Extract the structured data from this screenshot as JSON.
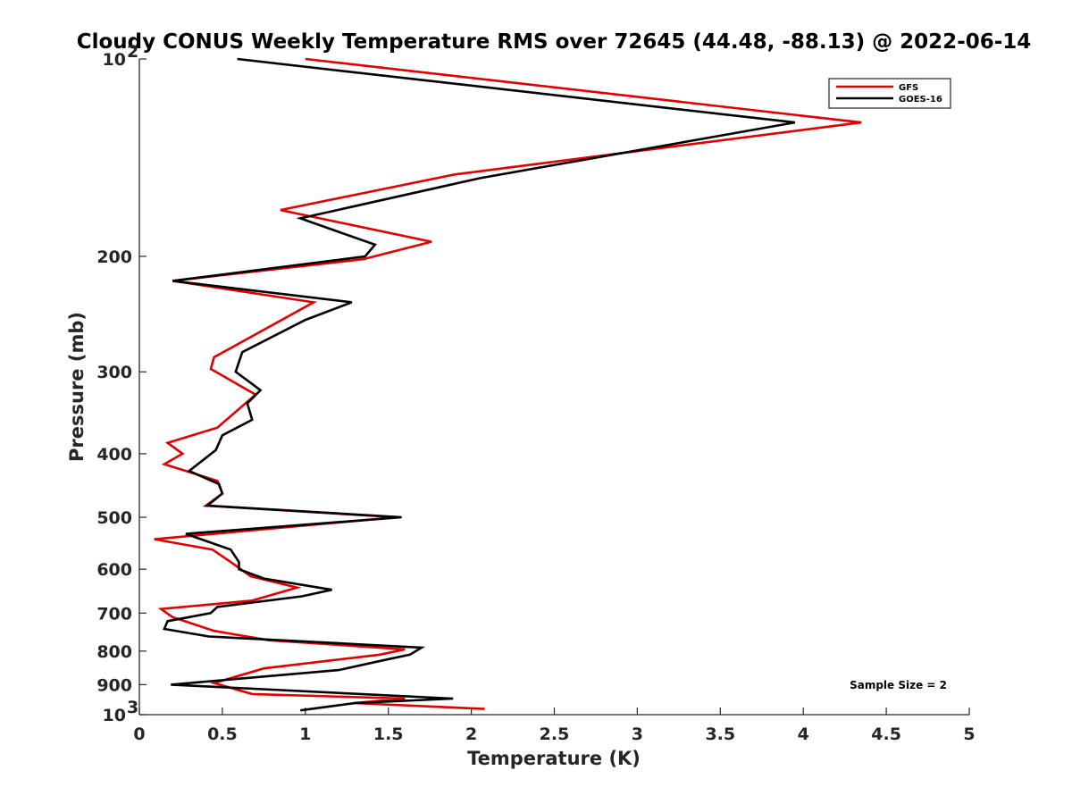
{
  "chart_data": {
    "type": "line",
    "title": "Cloudy CONUS Weekly Temperature RMS over 72645 (44.48, -88.13) @ 2022-06-14",
    "xlabel": "Temperature (K)",
    "ylabel": "Pressure (mb)",
    "xlim": [
      0,
      5
    ],
    "ylim": [
      100,
      1000
    ],
    "y_scale": "log",
    "y_reversed": true,
    "x_ticks": [
      0,
      0.5,
      1,
      1.5,
      2,
      2.5,
      3,
      3.5,
      4,
      4.5,
      5
    ],
    "x_tick_labels": [
      "0",
      "0.5",
      "1",
      "1.5",
      "2",
      "2.5",
      "3",
      "3.5",
      "4",
      "4.5",
      "5"
    ],
    "y_ticks": [
      {
        "value": 100,
        "label": "10",
        "exp": "2"
      },
      {
        "value": 200,
        "label": "200",
        "exp": ""
      },
      {
        "value": 300,
        "label": "300",
        "exp": ""
      },
      {
        "value": 400,
        "label": "400",
        "exp": ""
      },
      {
        "value": 500,
        "label": "500",
        "exp": ""
      },
      {
        "value": 600,
        "label": "600",
        "exp": ""
      },
      {
        "value": 700,
        "label": "700",
        "exp": ""
      },
      {
        "value": 800,
        "label": "800",
        "exp": ""
      },
      {
        "value": 900,
        "label": "900",
        "exp": ""
      },
      {
        "value": 1000,
        "label": "10",
        "exp": "3"
      }
    ],
    "grid": false,
    "legend_position": "top-right",
    "annotation": "Sample Size = 2",
    "series": [
      {
        "name": "GFS",
        "color": "#e00000",
        "points": [
          [
            1.0,
            100
          ],
          [
            4.35,
            125
          ],
          [
            1.9,
            150
          ],
          [
            0.85,
            170
          ],
          [
            1.76,
            190
          ],
          [
            1.35,
            202
          ],
          [
            0.2,
            218
          ],
          [
            1.05,
            235
          ],
          [
            0.45,
            285
          ],
          [
            0.43,
            297
          ],
          [
            0.7,
            325
          ],
          [
            0.47,
            365
          ],
          [
            0.17,
            385
          ],
          [
            0.26,
            400
          ],
          [
            0.15,
            415
          ],
          [
            0.47,
            440
          ],
          [
            0.5,
            460
          ],
          [
            0.4,
            480
          ],
          [
            1.55,
            500
          ],
          [
            0.09,
            540
          ],
          [
            0.44,
            560
          ],
          [
            0.55,
            585
          ],
          [
            0.67,
            615
          ],
          [
            0.95,
            640
          ],
          [
            0.68,
            670
          ],
          [
            0.13,
            690
          ],
          [
            0.2,
            710
          ],
          [
            0.45,
            745
          ],
          [
            0.78,
            770
          ],
          [
            1.6,
            795
          ],
          [
            1.45,
            810
          ],
          [
            0.75,
            850
          ],
          [
            0.45,
            895
          ],
          [
            0.68,
            930
          ],
          [
            1.6,
            945
          ],
          [
            1.29,
            960
          ],
          [
            2.08,
            980
          ]
        ]
      },
      {
        "name": "GOES-16",
        "color": "#000000",
        "points": [
          [
            0.59,
            100
          ],
          [
            3.95,
            125
          ],
          [
            2.05,
            152
          ],
          [
            0.97,
            175
          ],
          [
            1.42,
            192
          ],
          [
            1.36,
            200
          ],
          [
            0.2,
            218
          ],
          [
            1.28,
            235
          ],
          [
            1.0,
            250
          ],
          [
            0.62,
            280
          ],
          [
            0.58,
            300
          ],
          [
            0.73,
            320
          ],
          [
            0.65,
            335
          ],
          [
            0.68,
            355
          ],
          [
            0.5,
            375
          ],
          [
            0.46,
            395
          ],
          [
            0.3,
            425
          ],
          [
            0.48,
            445
          ],
          [
            0.5,
            460
          ],
          [
            0.41,
            480
          ],
          [
            1.58,
            500
          ],
          [
            0.28,
            530
          ],
          [
            0.55,
            560
          ],
          [
            0.6,
            585
          ],
          [
            0.6,
            600
          ],
          [
            0.75,
            620
          ],
          [
            1.16,
            645
          ],
          [
            0.98,
            660
          ],
          [
            0.47,
            685
          ],
          [
            0.43,
            700
          ],
          [
            0.17,
            720
          ],
          [
            0.15,
            740
          ],
          [
            0.42,
            760
          ],
          [
            1.7,
            790
          ],
          [
            1.63,
            810
          ],
          [
            1.48,
            825
          ],
          [
            1.2,
            855
          ],
          [
            0.19,
            900
          ],
          [
            1.89,
            945
          ],
          [
            1.3,
            960
          ],
          [
            0.97,
            985
          ]
        ]
      }
    ]
  }
}
